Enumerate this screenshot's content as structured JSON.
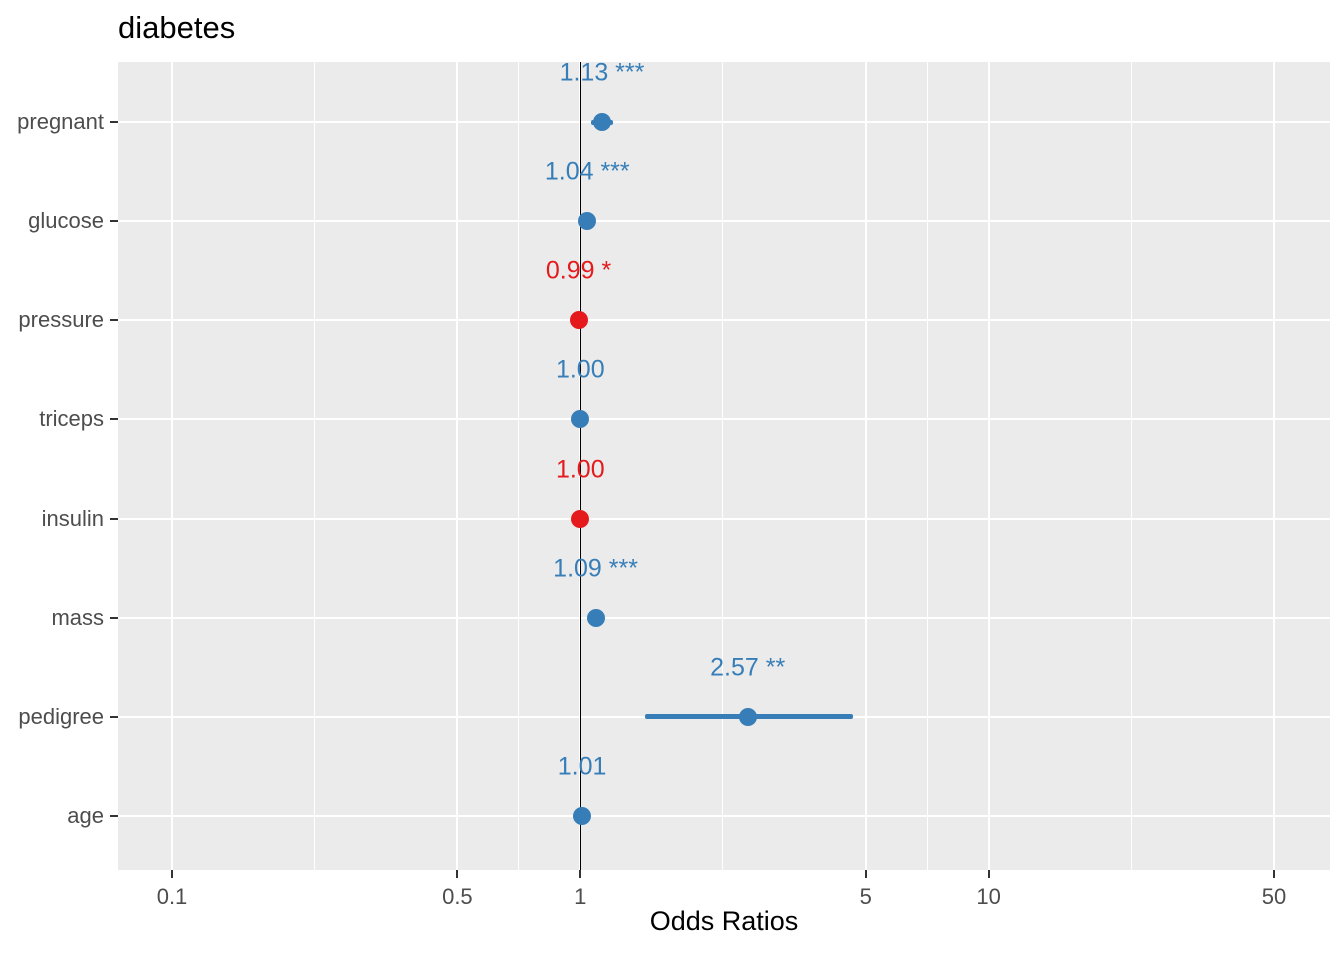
{
  "chart_data": {
    "type": "forest",
    "title": "diabetes",
    "xlabel": "Odds Ratios",
    "x_scale": "log10",
    "x_breaks": [
      0.1,
      0.5,
      1,
      5,
      10,
      50
    ],
    "x_break_labels": [
      "0.1",
      "0.5",
      "1",
      "5",
      "10",
      "50"
    ],
    "x_minor_breaks": [
      0.2236,
      0.7071,
      2.2361,
      7.0711,
      22.3607
    ],
    "x_range_shown": [
      0.074,
      68
    ],
    "reference_line": 1,
    "legend": "none",
    "grid": true,
    "categories": [
      "pregnant",
      "glucose",
      "pressure",
      "triceps",
      "insulin",
      "mass",
      "pedigree",
      "age"
    ],
    "rows": [
      {
        "category": "pregnant",
        "estimate": 1.13,
        "ci_low": 1.06,
        "ci_high": 1.2,
        "label": "1.13 ***",
        "color": "positive"
      },
      {
        "category": "glucose",
        "estimate": 1.04,
        "ci_low": null,
        "ci_high": null,
        "label": "1.04 ***",
        "color": "positive"
      },
      {
        "category": "pressure",
        "estimate": 0.99,
        "ci_low": null,
        "ci_high": null,
        "label": "0.99 *",
        "color": "negative"
      },
      {
        "category": "triceps",
        "estimate": 1.0,
        "ci_low": null,
        "ci_high": null,
        "label": "1.00",
        "color": "positive"
      },
      {
        "category": "insulin",
        "estimate": 1.0,
        "ci_low": null,
        "ci_high": null,
        "label": "1.00",
        "color": "negative"
      },
      {
        "category": "mass",
        "estimate": 1.09,
        "ci_low": null,
        "ci_high": null,
        "label": "1.09 ***",
        "color": "positive"
      },
      {
        "category": "pedigree",
        "estimate": 2.57,
        "ci_low": 1.44,
        "ci_high": 4.65,
        "label": "2.57 **",
        "color": "positive"
      },
      {
        "category": "age",
        "estimate": 1.01,
        "ci_low": null,
        "ci_high": null,
        "label": "1.01",
        "color": "positive"
      }
    ],
    "colors": {
      "positive": "#377EB8",
      "negative": "#E41A1C",
      "panel_bg": "#EBEBEB",
      "grid": "#FFFFFF",
      "axis_text": "#4D4D4D",
      "tick_mark": "#333333",
      "reference_line": "#000000",
      "title_text": "#000000"
    }
  }
}
